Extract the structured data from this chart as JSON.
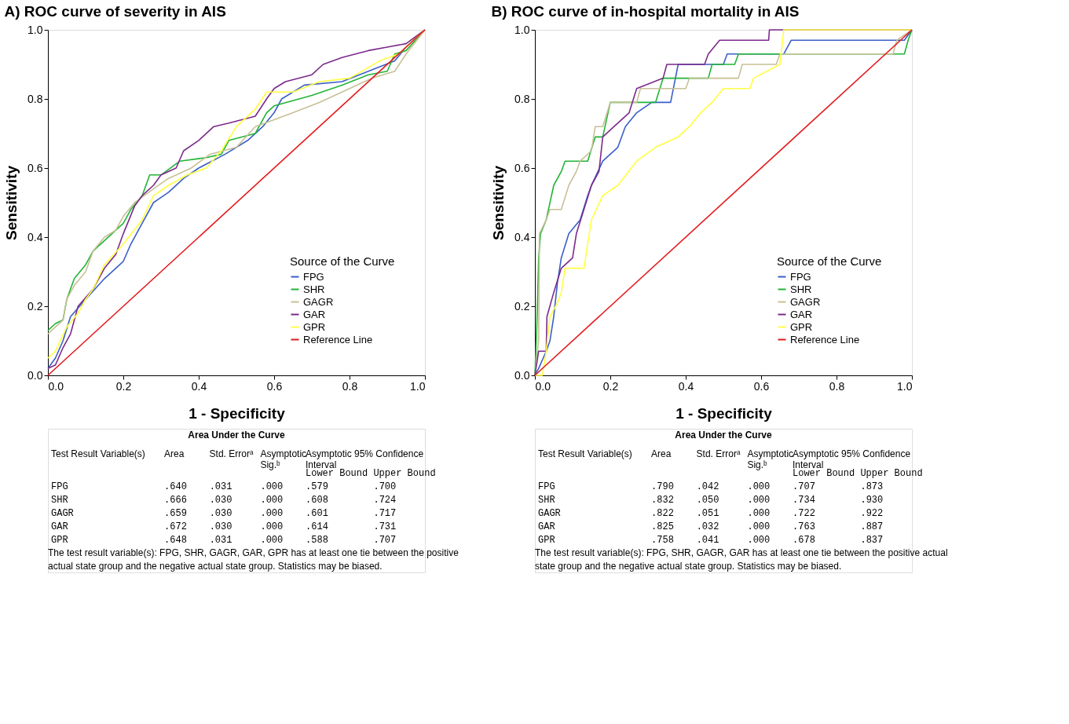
{
  "chart_data": [
    {
      "type": "line",
      "title": "A) ROC curve of severity in AIS",
      "xlabel": "1 - Specificity",
      "ylabel": "Sensitivity",
      "legend_title": "Source of the Curve",
      "legend": "bottom right",
      "xlim": [
        0,
        1
      ],
      "ylim": [
        0,
        1
      ],
      "xticks": [
        {
          "value": 0,
          "label": "0.0"
        },
        {
          "value": 0.2,
          "label": "0.2"
        },
        {
          "value": 0.4,
          "label": "0.4"
        },
        {
          "value": 0.6,
          "label": "0.6"
        },
        {
          "value": 0.8,
          "label": "0.8"
        },
        {
          "value": 1,
          "label": "1.0"
        }
      ],
      "yticks": [
        {
          "value": 0,
          "label": "0.0"
        },
        {
          "value": 0.2,
          "label": "0.2"
        },
        {
          "value": 0.4,
          "label": "0.4"
        },
        {
          "value": 0.6,
          "label": "0.6"
        },
        {
          "value": 0.8,
          "label": "0.8"
        },
        {
          "value": 1,
          "label": "1.0"
        }
      ],
      "series": [
        {
          "name": "FPG",
          "color": "#3a5fc8",
          "x": [
            0,
            0.02,
            0.04,
            0.06,
            0.1,
            0.15,
            0.2,
            0.22,
            0.25,
            0.28,
            0.32,
            0.36,
            0.4,
            0.47,
            0.53,
            0.57,
            0.6,
            0.62,
            0.68,
            0.78,
            0.85,
            0.92,
            0.95,
            1
          ],
          "values": [
            0.02,
            0.05,
            0.1,
            0.17,
            0.22,
            0.28,
            0.33,
            0.38,
            0.44,
            0.5,
            0.53,
            0.57,
            0.6,
            0.64,
            0.68,
            0.72,
            0.76,
            0.8,
            0.84,
            0.85,
            0.88,
            0.91,
            0.95,
            1
          ]
        },
        {
          "name": "SHR",
          "color": "#22b436",
          "x": [
            0,
            0.02,
            0.04,
            0.05,
            0.06,
            0.07,
            0.1,
            0.12,
            0.15,
            0.2,
            0.22,
            0.25,
            0.27,
            0.3,
            0.35,
            0.42,
            0.46,
            0.48,
            0.55,
            0.58,
            0.6,
            0.7,
            0.78,
            0.85,
            0.9,
            0.92,
            0.95,
            1
          ],
          "values": [
            0.13,
            0.15,
            0.16,
            0.22,
            0.25,
            0.28,
            0.32,
            0.36,
            0.39,
            0.44,
            0.48,
            0.52,
            0.58,
            0.58,
            0.62,
            0.63,
            0.64,
            0.68,
            0.7,
            0.76,
            0.78,
            0.81,
            0.84,
            0.87,
            0.88,
            0.93,
            0.94,
            1
          ]
        },
        {
          "name": "GAGR",
          "color": "#c8c096",
          "x": [
            0,
            0.02,
            0.04,
            0.05,
            0.07,
            0.1,
            0.12,
            0.15,
            0.18,
            0.2,
            0.23,
            0.28,
            0.32,
            0.38,
            0.43,
            0.5,
            0.55,
            0.6,
            0.65,
            0.72,
            0.8,
            0.86,
            0.92,
            0.95,
            1
          ],
          "values": [
            0.12,
            0.14,
            0.16,
            0.22,
            0.26,
            0.3,
            0.36,
            0.4,
            0.42,
            0.46,
            0.5,
            0.54,
            0.57,
            0.6,
            0.64,
            0.66,
            0.72,
            0.74,
            0.76,
            0.79,
            0.83,
            0.86,
            0.88,
            0.93,
            1
          ]
        },
        {
          "name": "GAR",
          "color": "#7b2a8b",
          "x": [
            0,
            0.02,
            0.04,
            0.06,
            0.08,
            0.12,
            0.15,
            0.18,
            0.2,
            0.23,
            0.25,
            0.28,
            0.3,
            0.34,
            0.36,
            0.4,
            0.44,
            0.48,
            0.55,
            0.58,
            0.6,
            0.63,
            0.7,
            0.73,
            0.78,
            0.85,
            0.9,
            0.95,
            1
          ],
          "values": [
            0.02,
            0.03,
            0.08,
            0.12,
            0.2,
            0.25,
            0.31,
            0.35,
            0.41,
            0.49,
            0.52,
            0.55,
            0.58,
            0.6,
            0.65,
            0.68,
            0.72,
            0.73,
            0.75,
            0.8,
            0.83,
            0.85,
            0.87,
            0.9,
            0.92,
            0.94,
            0.95,
            0.96,
            1
          ]
        },
        {
          "name": "GPR",
          "color": "#ffff40",
          "x": [
            0,
            0.02,
            0.05,
            0.08,
            0.1,
            0.12,
            0.15,
            0.2,
            0.25,
            0.28,
            0.32,
            0.37,
            0.42,
            0.46,
            0.5,
            0.55,
            0.58,
            0.65,
            0.72,
            0.8,
            0.88,
            0.93,
            0.97,
            1
          ],
          "values": [
            0.05,
            0.07,
            0.14,
            0.18,
            0.22,
            0.25,
            0.32,
            0.38,
            0.45,
            0.52,
            0.55,
            0.58,
            0.6,
            0.65,
            0.72,
            0.77,
            0.82,
            0.82,
            0.85,
            0.86,
            0.91,
            0.93,
            0.97,
            1
          ]
        },
        {
          "name": "Reference Line",
          "color": "#e31a1c",
          "x": [
            0,
            1
          ],
          "values": [
            0,
            1
          ]
        }
      ],
      "annotations": [
        "Area Under the Curve",
        "Test Result Variable(s)\tArea\tStd. Errorᵃ\tAsymptotic\nSig.ᵇ\tAsymptotic 95% Confidence\nInterval",
        "\t\t\t\tLower Bound\tUpper Bound",
        "FPG\t.640\t.031\t.000\t.579\t.700",
        "SHR\t.666\t.030\t.000\t.608\t.724",
        "GAGR\t.659\t.030\t.000\t.601\t.717",
        "GAR\t.672\t.030\t.000\t.614\t.731",
        "GPR\t.648\t.031\t.000\t.588\t.707",
        "The test result variable(s): FPG, SHR, GAGR, GAR, GPR has at least one tie between the positive",
        "actual state group and the negative actual state group. Statistics may be biased."
      ]
    },
    {
      "type": "line",
      "title": "B) ROC curve of in-hospital mortality in AIS",
      "xlabel": "1 - Specificity",
      "ylabel": "Sensitivity",
      "legend_title": "Source of the Curve",
      "legend": "bottom right",
      "xlim": [
        0,
        1
      ],
      "ylim": [
        0,
        1
      ],
      "xticks": [
        {
          "value": 0,
          "label": "0.0"
        },
        {
          "value": 0.2,
          "label": "0.2"
        },
        {
          "value": 0.4,
          "label": "0.4"
        },
        {
          "value": 0.6,
          "label": "0.6"
        },
        {
          "value": 0.8,
          "label": "0.8"
        },
        {
          "value": 1,
          "label": "1.0"
        }
      ],
      "yticks": [
        {
          "value": 0,
          "label": "0.0"
        },
        {
          "value": 0.2,
          "label": "0.2"
        },
        {
          "value": 0.4,
          "label": "0.4"
        },
        {
          "value": 0.6,
          "label": "0.6"
        },
        {
          "value": 0.8,
          "label": "0.8"
        },
        {
          "value": 1,
          "label": "1.0"
        }
      ],
      "series": [
        {
          "name": "FPG",
          "color": "#3a5fc8",
          "x": [
            0,
            0.01,
            0.03,
            0.04,
            0.05,
            0.06,
            0.07,
            0.09,
            0.12,
            0.14,
            0.15,
            0.18,
            0.22,
            0.24,
            0.27,
            0.31,
            0.36,
            0.38,
            0.5,
            0.51,
            0.66,
            0.68,
            0.98,
            1
          ],
          "values": [
            0,
            0.02,
            0.07,
            0.1,
            0.17,
            0.27,
            0.34,
            0.41,
            0.45,
            0.52,
            0.55,
            0.62,
            0.66,
            0.72,
            0.76,
            0.79,
            0.79,
            0.9,
            0.9,
            0.93,
            0.93,
            0.97,
            0.97,
            1
          ]
        },
        {
          "name": "SHR",
          "color": "#22b436",
          "x": [
            0,
            0.005,
            0.01,
            0.015,
            0.03,
            0.05,
            0.07,
            0.08,
            0.14,
            0.16,
            0.18,
            0.2,
            0.32,
            0.34,
            0.46,
            0.47,
            0.53,
            0.54,
            0.98,
            0.99,
            1
          ],
          "values": [
            0,
            0.14,
            0.34,
            0.41,
            0.45,
            0.55,
            0.59,
            0.62,
            0.62,
            0.69,
            0.69,
            0.79,
            0.79,
            0.86,
            0.86,
            0.9,
            0.9,
            0.93,
            0.93,
            0.97,
            1
          ]
        },
        {
          "name": "GAGR",
          "color": "#c8c096",
          "x": [
            0,
            0.01,
            0.012,
            0.03,
            0.04,
            0.07,
            0.09,
            0.11,
            0.12,
            0.15,
            0.16,
            0.18,
            0.2,
            0.27,
            0.28,
            0.4,
            0.41,
            0.54,
            0.55,
            0.64,
            0.65,
            0.95,
            0.96,
            1
          ],
          "values": [
            0,
            0.1,
            0.41,
            0.45,
            0.48,
            0.48,
            0.55,
            0.59,
            0.62,
            0.65,
            0.72,
            0.72,
            0.79,
            0.79,
            0.83,
            0.83,
            0.86,
            0.86,
            0.9,
            0.9,
            0.93,
            0.93,
            0.97,
            1
          ]
        },
        {
          "name": "GAR",
          "color": "#7b2a8b",
          "x": [
            0,
            0.01,
            0.03,
            0.032,
            0.05,
            0.07,
            0.1,
            0.11,
            0.13,
            0.15,
            0.17,
            0.18,
            0.21,
            0.25,
            0.27,
            0.34,
            0.35,
            0.45,
            0.46,
            0.49,
            0.62,
            0.622,
            1
          ],
          "values": [
            0,
            0.07,
            0.07,
            0.17,
            0.24,
            0.31,
            0.34,
            0.41,
            0.48,
            0.55,
            0.59,
            0.69,
            0.72,
            0.76,
            0.83,
            0.86,
            0.9,
            0.9,
            0.93,
            0.97,
            0.97,
            1,
            1
          ]
        },
        {
          "name": "GPR",
          "color": "#ffff40",
          "x": [
            0,
            0.02,
            0.03,
            0.04,
            0.06,
            0.07,
            0.08,
            0.13,
            0.14,
            0.15,
            0.18,
            0.22,
            0.27,
            0.32,
            0.38,
            0.41,
            0.44,
            0.47,
            0.5,
            0.57,
            0.58,
            0.65,
            0.66,
            1
          ],
          "values": [
            0,
            0,
            0.07,
            0.17,
            0.21,
            0.24,
            0.31,
            0.31,
            0.38,
            0.45,
            0.52,
            0.55,
            0.62,
            0.66,
            0.69,
            0.72,
            0.76,
            0.79,
            0.83,
            0.83,
            0.86,
            0.9,
            1,
            1
          ]
        },
        {
          "name": "Reference Line",
          "color": "#e31a1c",
          "x": [
            0,
            1
          ],
          "values": [
            0,
            1
          ]
        }
      ],
      "annotations": [
        "Area Under the Curve",
        "Test Result Variable(s)\tArea\tStd. Errorᵃ\tAsymptotic\nSig.ᵇ\tAsymptotic 95% Confidence\nInterval",
        "\t\t\t\tLower Bound\tUpper Bound",
        "FPG\t.790\t.042\t.000\t.707\t.873",
        "SHR\t.832\t.050\t.000\t.734\t.930",
        "GAGR\t.822\t.051\t.000\t.722\t.922",
        "GAR\t.825\t.032\t.000\t.763\t.887",
        "GPR\t.758\t.041\t.000\t.678\t.837",
        "The test result variable(s): FPG, SHR, GAGR, GAR has at least one tie between the positive actual",
        "state group and the negative actual state group. Statistics may be biased."
      ]
    }
  ]
}
